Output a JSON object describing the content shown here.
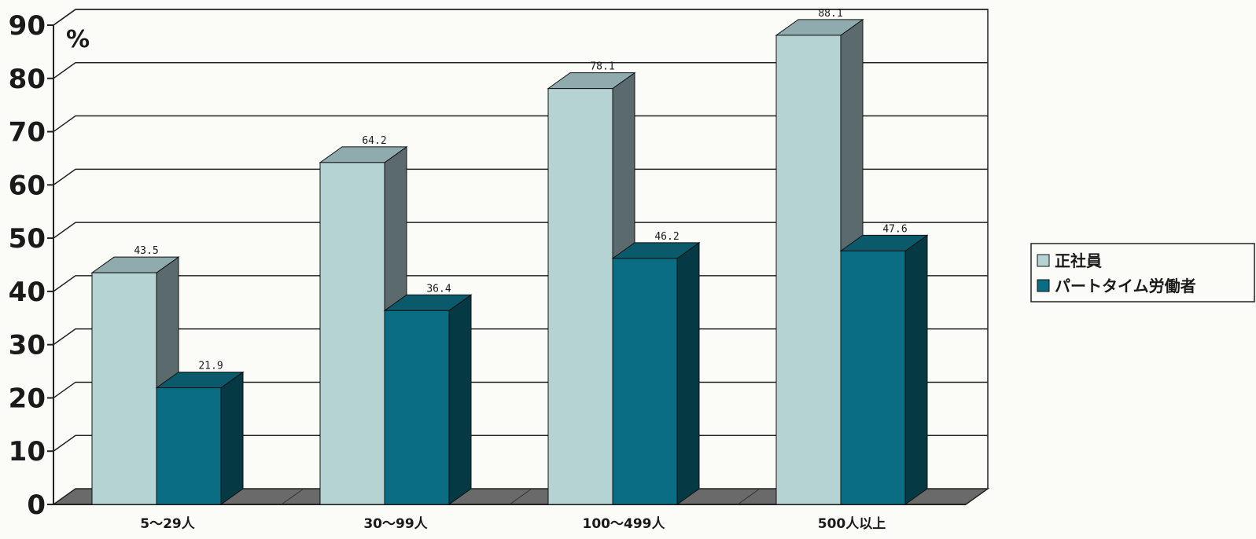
{
  "chart_data": {
    "type": "bar",
    "unit": "%",
    "categories": [
      "5～29人",
      "30～99人",
      "100～499人",
      "500人以上"
    ],
    "series": [
      {
        "name": "正社員",
        "values": [
          43.5,
          64.2,
          78.1,
          88.1
        ],
        "color": "#b6d3d4"
      },
      {
        "name": "パートタイム労働者",
        "values": [
          21.9,
          36.4,
          46.2,
          47.6
        ],
        "color": "#0a6d83"
      }
    ],
    "ylim": [
      0,
      90
    ],
    "yticks": [
      0,
      10,
      20,
      30,
      40,
      50,
      60,
      70,
      80,
      90
    ],
    "grid": true,
    "legend": "right"
  }
}
